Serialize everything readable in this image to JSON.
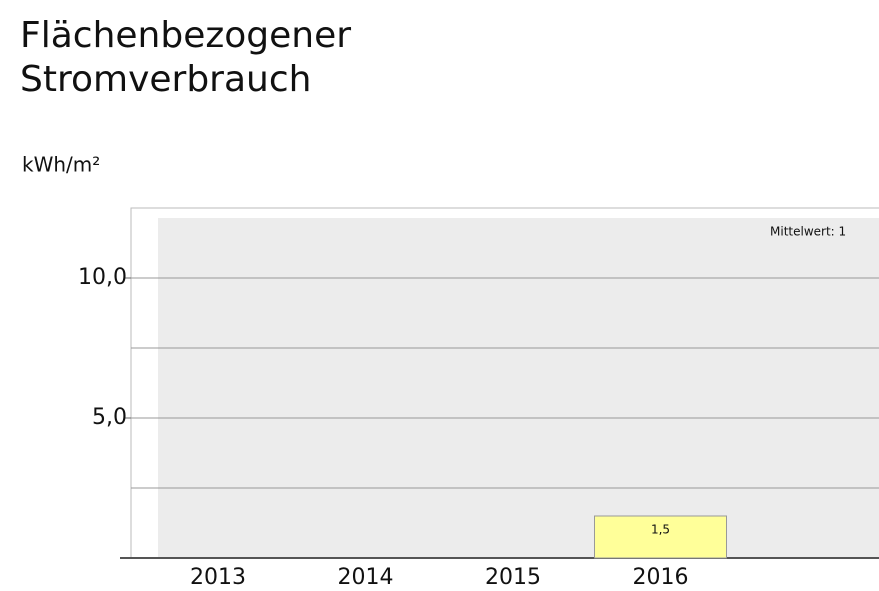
{
  "chart_data": {
    "type": "bar",
    "title": "Flächenbezogener Stromverbrauch",
    "y_label": "kWh/m²",
    "categories": [
      "2013",
      "2014",
      "2015",
      "2016"
    ],
    "values": [
      null,
      null,
      null,
      1.5
    ],
    "value_labels": [
      null,
      null,
      null,
      "1,5"
    ],
    "color": "#ffff99",
    "ylim": [
      0,
      12.5
    ],
    "yticks": [
      {
        "value": 5,
        "label": "5,0"
      },
      {
        "value": 10,
        "label": "10,0"
      }
    ],
    "minor_yticks": [
      2.5,
      7.5
    ],
    "grid": true,
    "annotation": "Mittelwert: 1"
  }
}
